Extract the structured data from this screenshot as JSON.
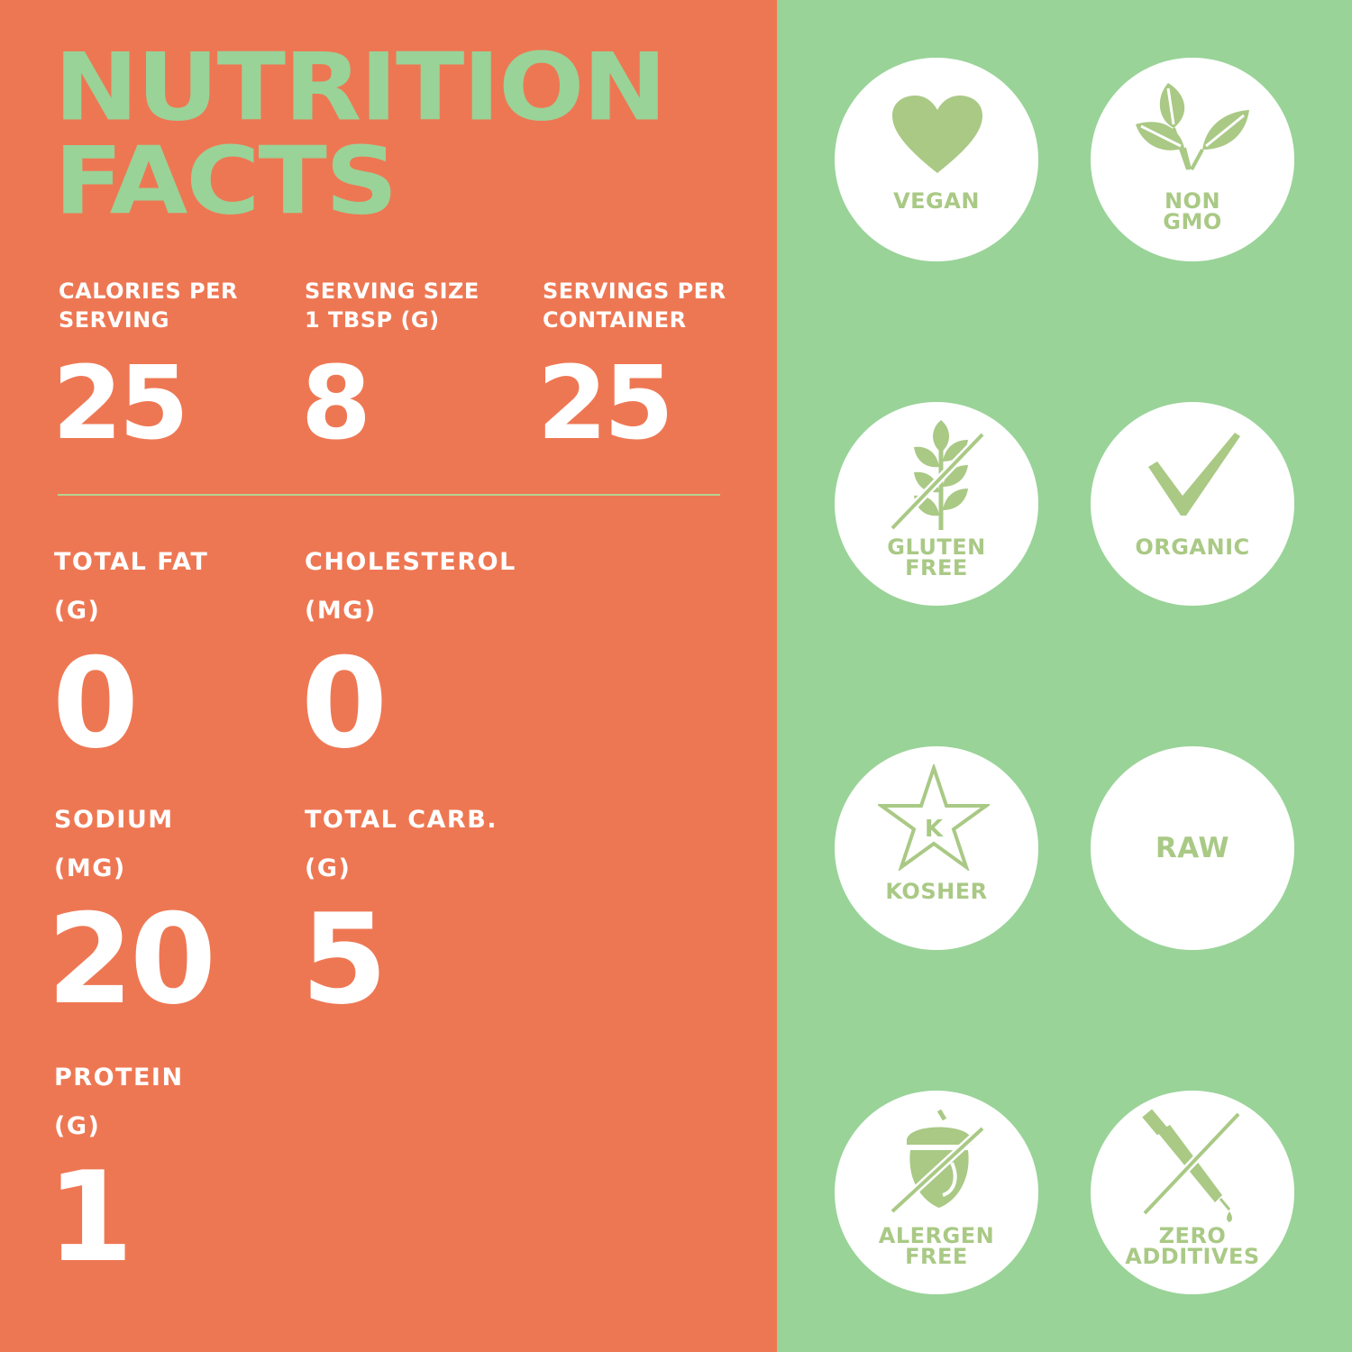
{
  "title": {
    "line1": "NUTRITION",
    "line2": "FACTS"
  },
  "top_stats": [
    {
      "label_lines": [
        "CALORIES PER",
        "SERVING"
      ],
      "value": "25"
    },
    {
      "label_lines": [
        "SERVING SIZE",
        "1 TBSP (G)"
      ],
      "value": "8"
    },
    {
      "label_lines": [
        "SERVINGS PER",
        "CONTAINER"
      ],
      "value": "25"
    }
  ],
  "nutrients": [
    {
      "label_lines": [
        "TOTAL FAT",
        "(G)"
      ],
      "value": "0"
    },
    {
      "label_lines": [
        "CHOLESTEROL",
        "(MG)"
      ],
      "value": "0"
    },
    {
      "label_lines": [
        "SODIUM",
        "(MG)"
      ],
      "value": "20"
    },
    {
      "label_lines": [
        "TOTAL CARB.",
        "(G)"
      ],
      "value": "5"
    },
    {
      "label_lines": [
        "PROTEIN",
        "(G)"
      ],
      "value": "1"
    }
  ],
  "badges": [
    {
      "icon": "heart-icon",
      "label_lines": [
        "VEGAN"
      ]
    },
    {
      "icon": "leaves-icon",
      "label_lines": [
        "NON",
        "GMO"
      ]
    },
    {
      "icon": "wheat-crossed-icon",
      "label_lines": [
        "GLUTEN",
        "FREE"
      ]
    },
    {
      "icon": "checkmark-icon",
      "label_lines": [
        "ORGANIC"
      ]
    },
    {
      "icon": "kosher-star-icon",
      "icon_text": "K",
      "label_lines": [
        "KOSHER"
      ]
    },
    {
      "icon": "none",
      "label_lines": [
        "RAW"
      ]
    },
    {
      "icon": "acorn-crossed-icon",
      "label_lines": [
        "ALERGEN",
        "FREE"
      ]
    },
    {
      "icon": "dropper-crossed-icon",
      "label_lines": [
        "ZERO",
        "ADDITIVES"
      ]
    }
  ],
  "colors": {
    "left_background": "#ee7753",
    "right_background": "#99d398",
    "title_green": "#99d398",
    "icon_green": "#a9c985",
    "text_white": "#ffffff"
  }
}
